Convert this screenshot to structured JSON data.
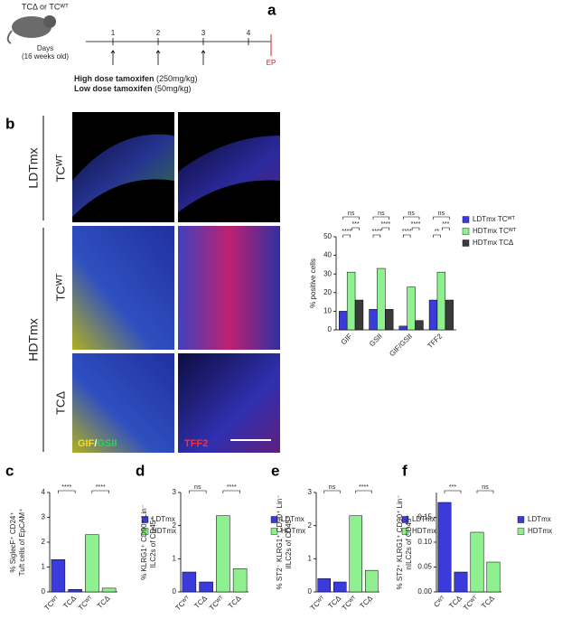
{
  "panel_labels": [
    "a",
    "b",
    "c",
    "d",
    "e",
    "f"
  ],
  "timeline": {
    "genotypes": "TCΔ or TCᵂᵀ",
    "days_label": [
      "Days",
      "(16 weeks old)"
    ],
    "days": [
      1,
      2,
      3,
      4
    ],
    "endpoint": "EP",
    "high_dose": [
      "High dose tamoxifen",
      "(250mg/kg)"
    ],
    "low_dose": [
      "Low dose tamoxifen",
      "(50mg/kg)"
    ]
  },
  "images": {
    "row_groups": [
      "LDTmx",
      "HDTmx"
    ],
    "rows": [
      "TCᵂᵀ",
      "TCᵂᵀ",
      "TCΔ"
    ],
    "stains": [
      "GIF",
      "/",
      "GSII"
    ],
    "stain_right": "TFF2"
  },
  "chart_data": [
    {
      "type": "bar",
      "ylabel": [
        "% positive cells"
      ],
      "categories": [
        "GIF",
        "GSII",
        "GIF/GSII",
        "TFF2"
      ],
      "series": [
        {
          "name": "LDTmx TCᵂᵀ",
          "color": "#3b3bdb",
          "values": [
            10,
            11,
            2,
            16
          ]
        },
        {
          "name": "HDTmx TCᵂᵀ",
          "color": "#8ef08e",
          "values": [
            31,
            33,
            23,
            31
          ]
        },
        {
          "name": "HDTmx TCΔ",
          "color": "#3a3a3a",
          "values": [
            16,
            11,
            5,
            16
          ]
        }
      ],
      "ylim": [
        0,
        50
      ],
      "yticks": [
        0,
        10,
        20,
        30,
        40,
        50
      ],
      "annotations": [
        "ns",
        "****",
        "***",
        "ns",
        "****",
        "****",
        "ns",
        "****",
        "****",
        "ns",
        "**",
        "***"
      ]
    },
    {
      "type": "bar",
      "ylabel": [
        "% SiglecF⁺ CD24⁺",
        "Tuft cells of  EpCAM⁺"
      ],
      "categories": [
        "TCᵂᵀ",
        "TCΔ",
        "TCᵂᵀ",
        "TCΔ"
      ],
      "series": [
        {
          "name": "LDTmx",
          "color": "#3b3bdb",
          "values": [
            1.3,
            0.1,
            null,
            null
          ]
        },
        {
          "name": "HDTmx",
          "color": "#8ef08e",
          "values": [
            null,
            null,
            2.3,
            0.15
          ]
        }
      ],
      "ylim": [
        0,
        4
      ],
      "yticks": [
        0,
        1,
        2,
        3,
        4
      ],
      "annotations": [
        "****",
        "****"
      ]
    },
    {
      "type": "bar",
      "ylabel": [
        "% KLRG1⁺ CD90⁺ Lin⁻",
        "ILC2s of CD45⁺"
      ],
      "categories": [
        "TCᵂᵀ",
        "TCΔ",
        "TCᵂᵀ",
        "TCΔ"
      ],
      "series": [
        {
          "name": "LDTmx",
          "color": "#3b3bdb",
          "values": [
            0.6,
            0.3,
            null,
            null
          ]
        },
        {
          "name": "HDTmx",
          "color": "#8ef08e",
          "values": [
            null,
            null,
            2.3,
            0.7
          ]
        }
      ],
      "ylim": [
        0,
        3
      ],
      "yticks": [
        0,
        1,
        2,
        3
      ],
      "annotations": [
        "ns",
        "****"
      ]
    },
    {
      "type": "bar",
      "ylabel": [
        "% ST2⁻ KLRG1⁺ CD90⁺ Lin⁻",
        "iILC2s of CD45⁺"
      ],
      "categories": [
        "TCᵂᵀ",
        "TCΔ",
        "TCᵂᵀ",
        "TCΔ"
      ],
      "series": [
        {
          "name": "LDTmx",
          "color": "#3b3bdb",
          "values": [
            0.4,
            0.3,
            null,
            null
          ]
        },
        {
          "name": "HDTmx",
          "color": "#8ef08e",
          "values": [
            null,
            null,
            2.3,
            0.65
          ]
        }
      ],
      "ylim": [
        0,
        3
      ],
      "yticks": [
        0,
        1,
        2,
        3
      ],
      "annotations": [
        "ns",
        "****"
      ]
    },
    {
      "type": "bar",
      "ylabel": [
        "% ST2⁺ KLRG1⁺ CD90⁺ Lin⁻",
        "nILC2s of CD45⁺"
      ],
      "categories": [
        "Cᵂᵀ",
        "TCΔ",
        "TCᵂᵀ",
        "TCΔ"
      ],
      "series": [
        {
          "name": "LDTmx",
          "color": "#3b3bdb",
          "values": [
            0.18,
            0.04,
            null,
            null
          ]
        },
        {
          "name": "HDTmx",
          "color": "#8ef08e",
          "values": [
            null,
            null,
            0.12,
            0.06
          ]
        }
      ],
      "ylim": [
        0,
        0.2
      ],
      "yticks": [
        {
          "value": 0,
          "label": "0.00"
        },
        {
          "value": 0.05,
          "label": "0.05"
        },
        {
          "value": 0.1,
          "label": "0.10"
        },
        {
          "value": 0.15,
          "label": "0.15"
        }
      ],
      "annotations": [
        "***",
        "ns"
      ]
    }
  ]
}
